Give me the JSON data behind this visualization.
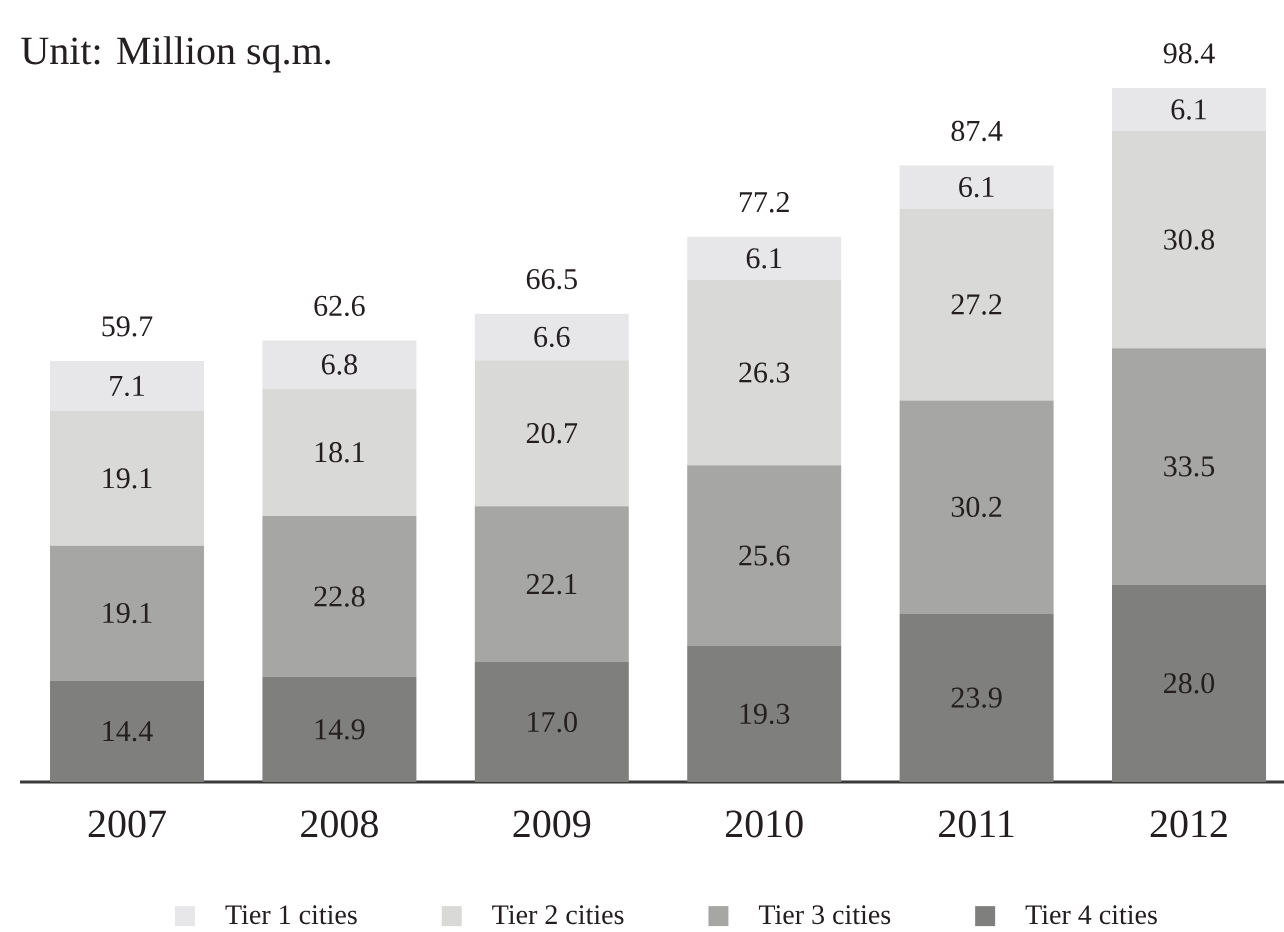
{
  "chart_data": {
    "type": "bar",
    "stacked": true,
    "categories": [
      "2007",
      "2008",
      "2009",
      "2010",
      "2011",
      "2012"
    ],
    "series": [
      {
        "name": "Tier 4 cities",
        "color": "#7f7f7d",
        "values": [
          14.4,
          14.9,
          17.0,
          19.3,
          23.9,
          28.0
        ],
        "value_labels": [
          "14.4",
          "14.9",
          "17.0",
          "19.3",
          "23.9",
          "28.0"
        ]
      },
      {
        "name": "Tier 3 cities",
        "color": "#a6a6a5",
        "values": [
          19.1,
          22.8,
          22.1,
          25.6,
          30.2,
          33.5
        ],
        "value_labels": [
          "19.1",
          "22.8",
          "22.1",
          "25.6",
          "30.2",
          "33.5"
        ]
      },
      {
        "name": "Tier 2 cities",
        "color": "#d9d9d7",
        "values": [
          19.1,
          18.1,
          20.7,
          26.3,
          27.2,
          30.8
        ],
        "value_labels": [
          "19.1",
          "18.1",
          "20.7",
          "26.3",
          "27.2",
          "30.8"
        ]
      },
      {
        "name": "Tier 1 cities",
        "color": "#e7e7e9",
        "values": [
          7.1,
          6.8,
          6.6,
          6.1,
          6.1,
          6.1
        ],
        "value_labels": [
          "7.1",
          "6.8",
          "6.6",
          "6.1",
          "6.1",
          "6.1"
        ]
      }
    ],
    "totals": [
      "59.7",
      "62.6",
      "66.5",
      "77.2",
      "87.4",
      "98.4"
    ],
    "annotations": [
      "Unit: Million sq.m."
    ],
    "legend": "bottom"
  }
}
